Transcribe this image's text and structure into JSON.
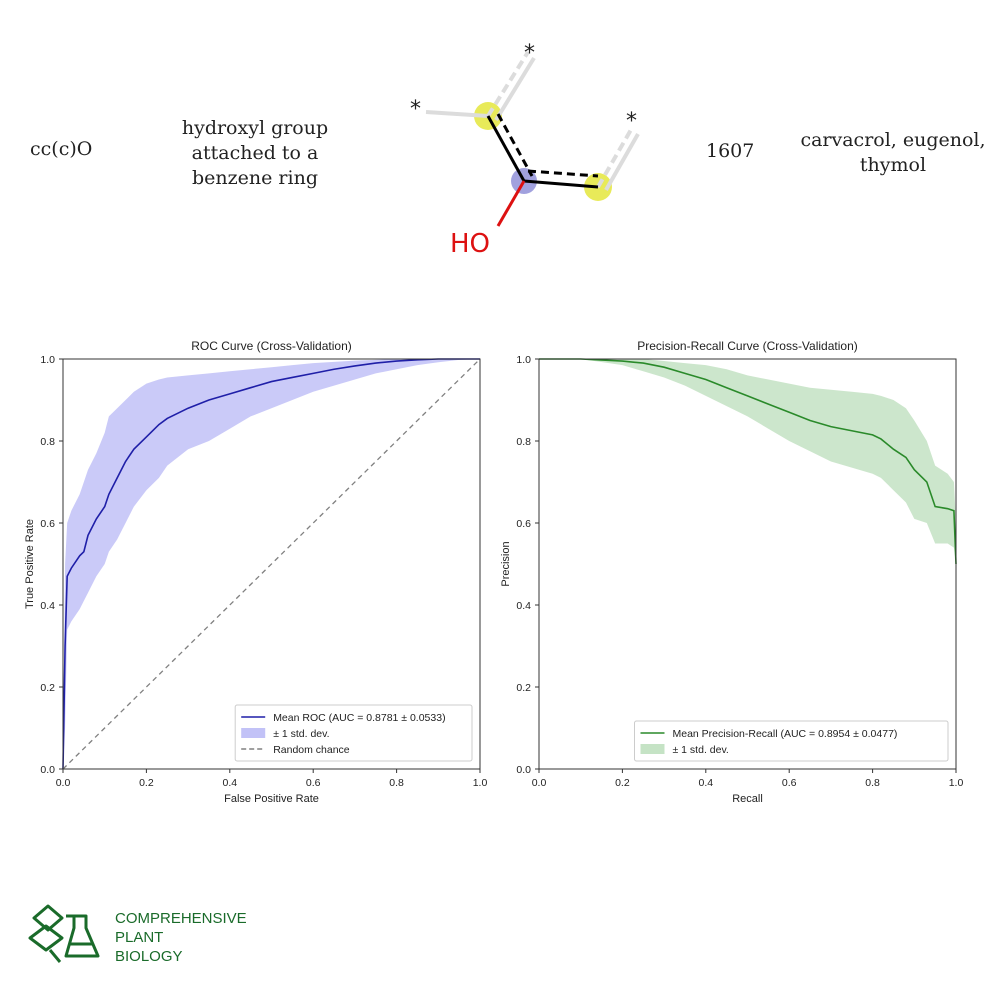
{
  "table_row": {
    "smarts": "cc(c)O",
    "description": "hydroxyl group attached to a benzene ring",
    "count": "1607",
    "examples": "carvacrol, eugenol, thymol"
  },
  "molecule": {
    "atom_label": "HO",
    "wildcard": "*"
  },
  "chart_data": [
    {
      "type": "line",
      "title": "ROC Curve (Cross-Validation)",
      "xlabel": "False Positive Rate",
      "ylabel": "True Positive Rate",
      "xlim": [
        0,
        1
      ],
      "ylim": [
        0,
        1
      ],
      "xticks": [
        "0.0",
        "0.2",
        "0.4",
        "0.6",
        "0.8",
        "1.0"
      ],
      "yticks": [
        "0.0",
        "0.2",
        "0.4",
        "0.6",
        "0.8",
        "1.0"
      ],
      "legend_position": "bottom-right",
      "series": [
        {
          "name": "Mean ROC (AUC = 0.8781 ± 0.0533)",
          "color": "#1f1fa8",
          "x": [
            0,
            0.005,
            0.01,
            0.02,
            0.04,
            0.05,
            0.06,
            0.08,
            0.1,
            0.11,
            0.13,
            0.15,
            0.17,
            0.2,
            0.23,
            0.25,
            0.3,
            0.35,
            0.4,
            0.45,
            0.5,
            0.55,
            0.6,
            0.65,
            0.7,
            0.75,
            0.8,
            0.85,
            0.9,
            0.95,
            1.0
          ],
          "y": [
            0,
            0.3,
            0.47,
            0.49,
            0.52,
            0.53,
            0.57,
            0.61,
            0.64,
            0.67,
            0.71,
            0.75,
            0.78,
            0.81,
            0.84,
            0.855,
            0.88,
            0.9,
            0.915,
            0.93,
            0.945,
            0.955,
            0.965,
            0.975,
            0.983,
            0.99,
            0.995,
            0.998,
            1.0,
            1.0,
            1.0
          ]
        },
        {
          "name": "± 1 std. dev.",
          "color": "#b3b3f5",
          "x": [
            0,
            0.005,
            0.01,
            0.02,
            0.04,
            0.05,
            0.06,
            0.08,
            0.1,
            0.11,
            0.13,
            0.15,
            0.17,
            0.2,
            0.23,
            0.25,
            0.3,
            0.35,
            0.4,
            0.45,
            0.5,
            0.55,
            0.6,
            0.65,
            0.7,
            0.75,
            0.8,
            0.85,
            0.9,
            0.95,
            1.0
          ],
          "upper": [
            0,
            0.5,
            0.6,
            0.63,
            0.67,
            0.7,
            0.73,
            0.77,
            0.82,
            0.86,
            0.88,
            0.9,
            0.92,
            0.94,
            0.95,
            0.955,
            0.96,
            0.965,
            0.97,
            0.975,
            0.98,
            0.985,
            0.99,
            0.993,
            0.996,
            0.998,
            1.0,
            1.0,
            1.0,
            1.0,
            1.0
          ],
          "lower": [
            0,
            0.1,
            0.34,
            0.36,
            0.39,
            0.41,
            0.43,
            0.47,
            0.5,
            0.53,
            0.56,
            0.6,
            0.64,
            0.68,
            0.71,
            0.74,
            0.78,
            0.8,
            0.83,
            0.86,
            0.88,
            0.9,
            0.92,
            0.935,
            0.95,
            0.965,
            0.975,
            0.985,
            0.992,
            0.998,
            1.0
          ]
        },
        {
          "name": "Random chance",
          "color": "#808080",
          "x": [
            0,
            1
          ],
          "y": [
            0,
            1
          ]
        }
      ]
    },
    {
      "type": "line",
      "title": "Precision-Recall Curve (Cross-Validation)",
      "xlabel": "Recall",
      "ylabel": "Precision",
      "xlim": [
        0,
        1
      ],
      "ylim": [
        0,
        1
      ],
      "xticks": [
        "0.0",
        "0.2",
        "0.4",
        "0.6",
        "0.8",
        "1.0"
      ],
      "yticks": [
        "0.0",
        "0.2",
        "0.4",
        "0.6",
        "0.8",
        "1.0"
      ],
      "legend_position": "bottom-right",
      "series": [
        {
          "name": "Mean Precision-Recall (AUC = 0.8954 ± 0.0477)",
          "color": "#2a8a2a",
          "x": [
            0,
            0.1,
            0.2,
            0.25,
            0.3,
            0.35,
            0.4,
            0.45,
            0.5,
            0.55,
            0.6,
            0.65,
            0.7,
            0.75,
            0.8,
            0.82,
            0.85,
            0.88,
            0.9,
            0.93,
            0.95,
            0.98,
            0.995,
            1.0
          ],
          "y": [
            1.0,
            1.0,
            0.995,
            0.99,
            0.98,
            0.965,
            0.95,
            0.93,
            0.91,
            0.89,
            0.87,
            0.85,
            0.835,
            0.825,
            0.815,
            0.805,
            0.78,
            0.76,
            0.73,
            0.7,
            0.64,
            0.635,
            0.63,
            0.5
          ]
        },
        {
          "name": "± 1 std. dev.",
          "color": "#b6dcb6",
          "x": [
            0,
            0.1,
            0.2,
            0.25,
            0.3,
            0.35,
            0.4,
            0.45,
            0.5,
            0.55,
            0.6,
            0.65,
            0.7,
            0.75,
            0.8,
            0.82,
            0.85,
            0.88,
            0.9,
            0.93,
            0.95,
            0.98,
            0.995,
            1.0
          ],
          "upper": [
            1.0,
            1.0,
            1.0,
            1.0,
            0.995,
            0.99,
            0.985,
            0.975,
            0.96,
            0.95,
            0.94,
            0.93,
            0.925,
            0.92,
            0.915,
            0.91,
            0.9,
            0.88,
            0.85,
            0.8,
            0.74,
            0.72,
            0.7,
            0.6
          ],
          "lower": [
            1.0,
            1.0,
            0.985,
            0.97,
            0.955,
            0.935,
            0.91,
            0.885,
            0.86,
            0.83,
            0.8,
            0.775,
            0.75,
            0.735,
            0.72,
            0.71,
            0.68,
            0.65,
            0.61,
            0.6,
            0.55,
            0.55,
            0.54,
            0.5
          ]
        }
      ]
    }
  ],
  "logo": {
    "line1": "COMPREHENSIVE",
    "line2": "PLANT",
    "line3": "BIOLOGY",
    "color": "#1a6b2a"
  }
}
